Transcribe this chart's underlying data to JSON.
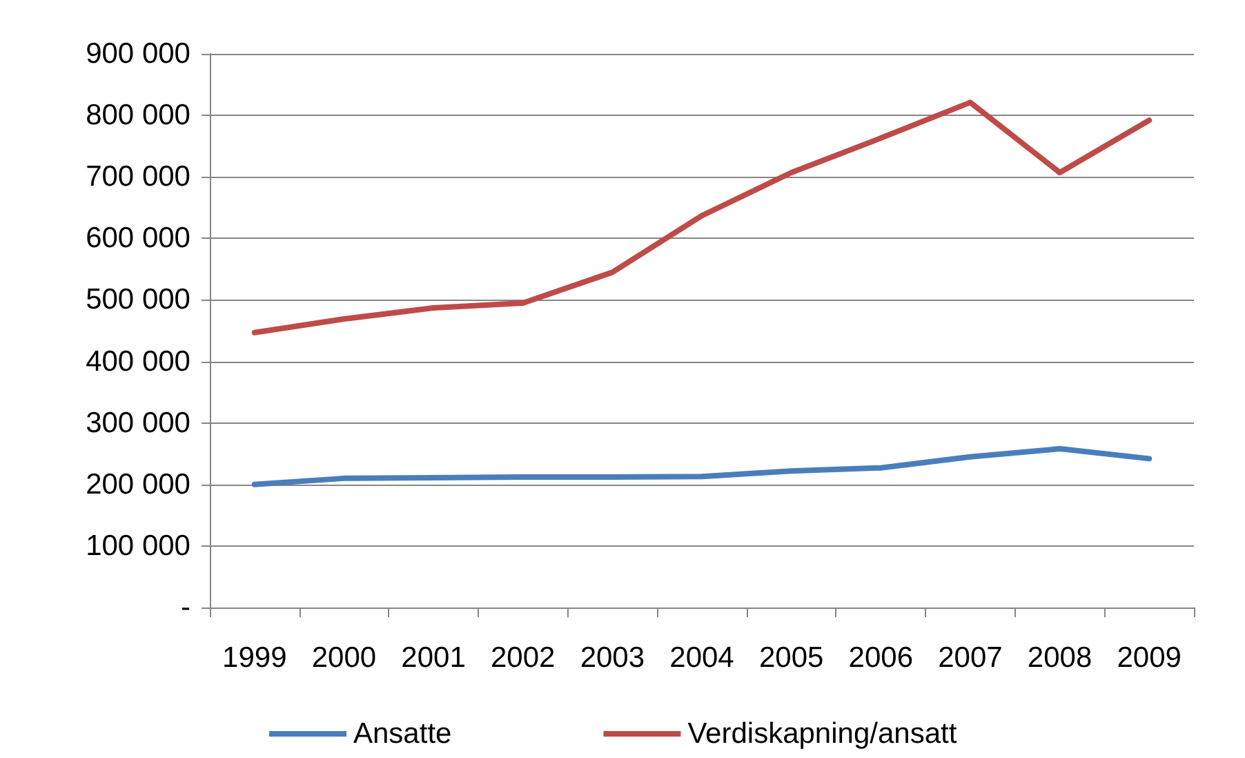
{
  "chart_data": {
    "type": "line",
    "categories": [
      "1999",
      "2000",
      "2001",
      "2002",
      "2003",
      "2004",
      "2005",
      "2006",
      "2007",
      "2008",
      "2009"
    ],
    "series": [
      {
        "name": "Ansatte",
        "color": "#4a7ebb",
        "values": [
          200000,
          210000,
          211000,
          212000,
          212000,
          213000,
          222000,
          227000,
          245000,
          258000,
          242000
        ]
      },
      {
        "name": "Verdiskapning/ansatt",
        "color": "#be4b48",
        "values": [
          447000,
          469000,
          487000,
          495000,
          545000,
          637000,
          707000,
          763000,
          821000,
          707000,
          792000
        ]
      }
    ],
    "ylim": [
      0,
      900000
    ],
    "yticks": [
      {
        "value": 0,
        "label": "-"
      },
      {
        "value": 100000,
        "label": "100 000"
      },
      {
        "value": 200000,
        "label": "200 000"
      },
      {
        "value": 300000,
        "label": "300 000"
      },
      {
        "value": 400000,
        "label": "400 000"
      },
      {
        "value": 500000,
        "label": "500 000"
      },
      {
        "value": 600000,
        "label": "600 000"
      },
      {
        "value": 700000,
        "label": "700 000"
      },
      {
        "value": 800000,
        "label": "800 000"
      },
      {
        "value": 900000,
        "label": "900 000"
      }
    ],
    "grid": "y",
    "legend": "bottom",
    "marker": "none",
    "line_style": "solid"
  }
}
